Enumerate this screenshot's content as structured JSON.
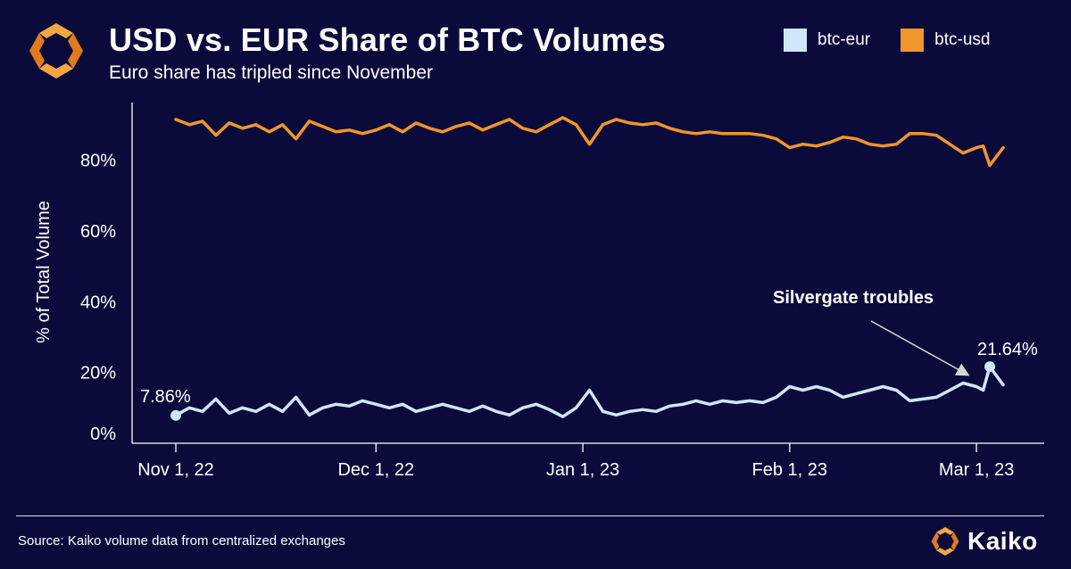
{
  "header": {
    "title": "USD vs. EUR Share of BTC Volumes",
    "subtitle": "Euro share has tripled since November"
  },
  "footer": {
    "source": "Source: Kaiko volume data from centralized exchanges",
    "brand": "Kaiko"
  },
  "colors": {
    "background": "#0b0b3b",
    "btc_eur": "#cfe6fb",
    "btc_usd": "#f0962a",
    "text": "#ffffff"
  },
  "chart_data": {
    "type": "line",
    "title": "USD vs. EUR Share of BTC Volumes",
    "subtitle": "Euro share has tripled since November",
    "xlabel": "",
    "ylabel": "% of Total Volume",
    "x_range": [
      "2022-11-01",
      "2023-03-05"
    ],
    "x_ticks": [
      {
        "date": "2022-11-01",
        "label": "Nov 1, 22"
      },
      {
        "date": "2022-12-01",
        "label": "Dec 1, 22"
      },
      {
        "date": "2023-01-01",
        "label": "Jan 1, 23"
      },
      {
        "date": "2023-02-01",
        "label": "Feb 1, 23"
      },
      {
        "date": "2023-03-01",
        "label": "Mar 1, 23"
      }
    ],
    "ylim": [
      0,
      95
    ],
    "y_ticks": [
      {
        "value": 0,
        "label": "0%"
      },
      {
        "value": 20,
        "label": "20%"
      },
      {
        "value": 40,
        "label": "40%"
      },
      {
        "value": 60,
        "label": "60%"
      },
      {
        "value": 80,
        "label": "80%"
      }
    ],
    "grid": false,
    "legend": "top-right",
    "series": [
      {
        "name": "btc-eur",
        "color": "#cfe6fb",
        "points": [
          [
            "2022-11-01",
            7.86
          ],
          [
            "2022-11-03",
            10
          ],
          [
            "2022-11-05",
            9
          ],
          [
            "2022-11-07",
            12.5
          ],
          [
            "2022-11-09",
            8.5
          ],
          [
            "2022-11-11",
            10
          ],
          [
            "2022-11-13",
            9
          ],
          [
            "2022-11-15",
            11
          ],
          [
            "2022-11-17",
            9
          ],
          [
            "2022-11-19",
            13
          ],
          [
            "2022-11-21",
            8
          ],
          [
            "2022-11-23",
            10
          ],
          [
            "2022-11-25",
            11
          ],
          [
            "2022-11-27",
            10.5
          ],
          [
            "2022-11-29",
            12
          ],
          [
            "2022-12-01",
            11
          ],
          [
            "2022-12-03",
            10
          ],
          [
            "2022-12-05",
            11
          ],
          [
            "2022-12-07",
            9
          ],
          [
            "2022-12-09",
            10
          ],
          [
            "2022-12-11",
            11
          ],
          [
            "2022-12-13",
            10
          ],
          [
            "2022-12-15",
            9
          ],
          [
            "2022-12-17",
            10.5
          ],
          [
            "2022-12-19",
            9
          ],
          [
            "2022-12-21",
            8
          ],
          [
            "2022-12-23",
            10
          ],
          [
            "2022-12-25",
            11
          ],
          [
            "2022-12-27",
            9.5
          ],
          [
            "2022-12-29",
            7.5
          ],
          [
            "2022-12-31",
            10
          ],
          [
            "2023-01-02",
            15
          ],
          [
            "2023-01-04",
            9
          ],
          [
            "2023-01-06",
            8
          ],
          [
            "2023-01-08",
            9
          ],
          [
            "2023-01-10",
            9.5
          ],
          [
            "2023-01-12",
            9
          ],
          [
            "2023-01-14",
            10.5
          ],
          [
            "2023-01-16",
            11
          ],
          [
            "2023-01-18",
            12
          ],
          [
            "2023-01-20",
            11
          ],
          [
            "2023-01-22",
            12
          ],
          [
            "2023-01-24",
            11.5
          ],
          [
            "2023-01-26",
            12
          ],
          [
            "2023-01-28",
            11.5
          ],
          [
            "2023-01-30",
            13
          ],
          [
            "2023-02-01",
            16
          ],
          [
            "2023-02-03",
            15
          ],
          [
            "2023-02-05",
            16
          ],
          [
            "2023-02-07",
            15
          ],
          [
            "2023-02-09",
            13
          ],
          [
            "2023-02-11",
            14
          ],
          [
            "2023-02-13",
            15
          ],
          [
            "2023-02-15",
            16
          ],
          [
            "2023-02-17",
            15
          ],
          [
            "2023-02-19",
            12
          ],
          [
            "2023-02-21",
            12.5
          ],
          [
            "2023-02-23",
            13
          ],
          [
            "2023-02-25",
            15
          ],
          [
            "2023-02-27",
            17
          ],
          [
            "2023-03-01",
            16
          ],
          [
            "2023-03-02",
            15
          ],
          [
            "2023-03-03",
            21.64
          ],
          [
            "2023-03-05",
            16.5
          ]
        ]
      },
      {
        "name": "btc-usd",
        "color": "#f0962a",
        "points": [
          [
            "2022-11-01",
            91.5
          ],
          [
            "2022-11-03",
            90
          ],
          [
            "2022-11-05",
            91
          ],
          [
            "2022-11-07",
            87
          ],
          [
            "2022-11-09",
            90.5
          ],
          [
            "2022-11-11",
            89
          ],
          [
            "2022-11-13",
            90
          ],
          [
            "2022-11-15",
            88
          ],
          [
            "2022-11-17",
            90
          ],
          [
            "2022-11-19",
            86
          ],
          [
            "2022-11-21",
            91
          ],
          [
            "2022-11-23",
            89.5
          ],
          [
            "2022-11-25",
            88
          ],
          [
            "2022-11-27",
            88.5
          ],
          [
            "2022-11-29",
            87.5
          ],
          [
            "2022-12-01",
            88.5
          ],
          [
            "2022-12-03",
            90
          ],
          [
            "2022-12-05",
            88
          ],
          [
            "2022-12-07",
            90.5
          ],
          [
            "2022-12-09",
            89
          ],
          [
            "2022-12-11",
            88
          ],
          [
            "2022-12-13",
            89.5
          ],
          [
            "2022-12-15",
            90.5
          ],
          [
            "2022-12-17",
            88.5
          ],
          [
            "2022-12-19",
            90
          ],
          [
            "2022-12-21",
            91.5
          ],
          [
            "2022-12-23",
            89
          ],
          [
            "2022-12-25",
            88
          ],
          [
            "2022-12-27",
            90
          ],
          [
            "2022-12-29",
            92
          ],
          [
            "2022-12-31",
            90
          ],
          [
            "2023-01-02",
            84.5
          ],
          [
            "2023-01-04",
            90
          ],
          [
            "2023-01-06",
            91.5
          ],
          [
            "2023-01-08",
            90.5
          ],
          [
            "2023-01-10",
            90
          ],
          [
            "2023-01-12",
            90.5
          ],
          [
            "2023-01-14",
            89
          ],
          [
            "2023-01-16",
            88
          ],
          [
            "2023-01-18",
            87.5
          ],
          [
            "2023-01-20",
            88
          ],
          [
            "2023-01-22",
            87.5
          ],
          [
            "2023-01-24",
            87.5
          ],
          [
            "2023-01-26",
            87.5
          ],
          [
            "2023-01-28",
            87
          ],
          [
            "2023-01-30",
            86
          ],
          [
            "2023-02-01",
            83.5
          ],
          [
            "2023-02-03",
            84.5
          ],
          [
            "2023-02-05",
            84
          ],
          [
            "2023-02-07",
            85
          ],
          [
            "2023-02-09",
            86.5
          ],
          [
            "2023-02-11",
            86
          ],
          [
            "2023-02-13",
            84.5
          ],
          [
            "2023-02-15",
            84
          ],
          [
            "2023-02-17",
            84.5
          ],
          [
            "2023-02-19",
            87.5
          ],
          [
            "2023-02-21",
            87.5
          ],
          [
            "2023-02-23",
            87
          ],
          [
            "2023-02-25",
            84.5
          ],
          [
            "2023-02-27",
            82
          ],
          [
            "2023-03-01",
            83.5
          ],
          [
            "2023-03-02",
            84
          ],
          [
            "2023-03-03",
            78.5
          ],
          [
            "2023-03-05",
            83.5
          ]
        ]
      }
    ],
    "annotations": [
      {
        "text": "7.86%",
        "series": "btc-eur",
        "date": "2022-11-01",
        "value": 7.86
      },
      {
        "text": "21.64%",
        "series": "btc-eur",
        "date": "2023-03-03",
        "value": 21.64
      },
      {
        "text": "Silvergate troubles",
        "series": "btc-eur",
        "date": "2023-03-01",
        "value": 18
      }
    ]
  }
}
